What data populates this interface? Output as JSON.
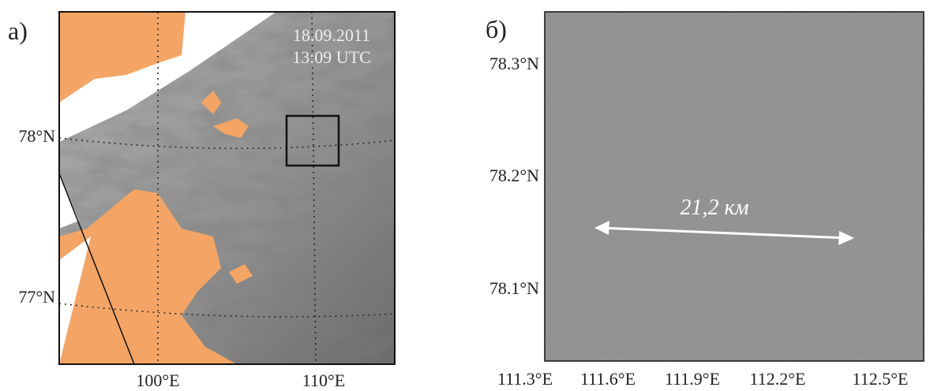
{
  "panels": [
    {
      "label": "а)",
      "date": "18.09.2011",
      "time": "13:09 UTC",
      "lat_labels": [
        "78°N",
        "77°N"
      ],
      "lon_labels": [
        "100°E",
        "110°E"
      ]
    },
    {
      "label": "б)",
      "annotation": "21,2 км",
      "lat_labels": [
        "78.3°N",
        "78.2°N",
        "78.1°N"
      ],
      "lon_labels": [
        "111.3°E",
        "111.6°E",
        "111.9°E",
        "112.2°E",
        "112.5°E"
      ]
    }
  ]
}
